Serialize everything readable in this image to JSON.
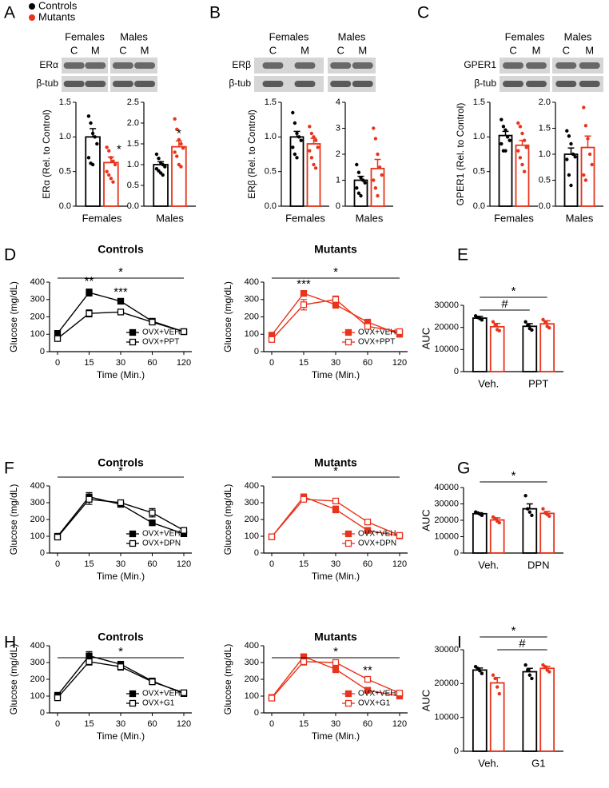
{
  "legend": {
    "items": [
      {
        "name": "Controls",
        "color": "#000000"
      },
      {
        "name": "Mutants",
        "color": "#e8341c"
      }
    ]
  },
  "blots": [
    {
      "panel": "A",
      "groups": [
        "Females",
        "Males"
      ],
      "lanes": [
        "C",
        "M"
      ],
      "rows": [
        "ERα",
        "β-tub"
      ]
    },
    {
      "panel": "B",
      "groups": [
        "Females",
        "Males"
      ],
      "lanes": [
        "C",
        "M"
      ],
      "rows": [
        "ERβ",
        "β-tub"
      ]
    },
    {
      "panel": "C",
      "groups": [
        "Females",
        "Males"
      ],
      "lanes": [
        "C",
        "M"
      ],
      "rows": [
        "GPER1",
        "β-tub"
      ]
    }
  ],
  "chart_data": [
    {
      "type": "bar",
      "ylabel": "ERα (Rel. to Control)",
      "categories": [
        "Females"
      ],
      "ylim": [
        0,
        1.5
      ],
      "yticks": [
        {
          "value": 0,
          "label": "0.0"
        },
        {
          "value": 0.5,
          "label": "0.5"
        },
        {
          "value": 1,
          "label": "1.0"
        },
        {
          "value": 1.5,
          "label": "1.5"
        }
      ],
      "series": [
        {
          "color": "#000000",
          "values": [
            1.0
          ],
          "errors": [
            0.12
          ],
          "points": [
            [
              1.3,
              1.2,
              1.05,
              1.0,
              0.9,
              0.7,
              0.62,
              0.6
            ]
          ]
        },
        {
          "color": "#e8341c",
          "values": [
            0.63
          ],
          "errors": [
            0.08
          ],
          "points": [
            [
              0.85,
              0.8,
              0.7,
              0.65,
              0.6,
              0.5,
              0.45,
              0.4,
              0.35
            ]
          ]
        }
      ],
      "annotations": [
        "*"
      ]
    },
    {
      "type": "bar",
      "categories": [
        "Males"
      ],
      "ylim": [
        0,
        2.5
      ],
      "yticks": [
        {
          "value": 0,
          "label": "0.0"
        },
        {
          "value": 0.5,
          "label": "0.5"
        },
        {
          "value": 1,
          "label": "1.0"
        },
        {
          "value": 1.5,
          "label": "1.5"
        },
        {
          "value": 2,
          "label": "2.0"
        },
        {
          "value": 2.5,
          "label": "2.5"
        }
      ],
      "series": [
        {
          "color": "#000000",
          "values": [
            1.0
          ],
          "errors": [
            0.07
          ],
          "points": [
            [
              1.25,
              1.15,
              1.05,
              1.0,
              0.95,
              0.9,
              0.85,
              0.8,
              0.75
            ]
          ]
        },
        {
          "color": "#e8341c",
          "values": [
            1.43
          ],
          "errors": [
            0.14
          ],
          "points": [
            [
              2.1,
              1.85,
              1.6,
              1.5,
              1.4,
              1.3,
              1.2,
              1.0,
              0.95
            ]
          ]
        }
      ],
      "annotations": [
        "*"
      ]
    },
    {
      "type": "bar",
      "ylabel": "ERβ (Rel. to Control)",
      "categories": [
        "Females"
      ],
      "ylim": [
        0,
        1.5
      ],
      "yticks": [
        {
          "value": 0,
          "label": "0.0"
        },
        {
          "value": 0.5,
          "label": "0.5"
        },
        {
          "value": 1,
          "label": "1.0"
        },
        {
          "value": 1.5,
          "label": "1.5"
        }
      ],
      "series": [
        {
          "color": "#000000",
          "values": [
            1.0
          ],
          "errors": [
            0.08
          ],
          "points": [
            [
              1.35,
              1.2,
              1.05,
              1.0,
              0.95,
              0.85,
              0.75,
              0.7
            ]
          ]
        },
        {
          "color": "#e8341c",
          "values": [
            0.9
          ],
          "errors": [
            0.08
          ],
          "points": [
            [
              1.15,
              1.05,
              1.0,
              0.95,
              0.85,
              0.8,
              0.7,
              0.6,
              0.55
            ]
          ]
        }
      ]
    },
    {
      "type": "bar",
      "categories": [
        "Males"
      ],
      "ylim": [
        0,
        4
      ],
      "yticks": [
        0,
        1,
        2,
        3,
        4
      ],
      "series": [
        {
          "color": "#000000",
          "values": [
            1.0
          ],
          "errors": [
            0.15
          ],
          "points": [
            [
              1.6,
              1.3,
              1.1,
              1.0,
              0.9,
              0.7,
              0.5,
              0.4
            ]
          ]
        },
        {
          "color": "#e8341c",
          "values": [
            1.45
          ],
          "errors": [
            0.35
          ],
          "points": [
            [
              3.0,
              2.6,
              2.0,
              1.5,
              1.2,
              1.0,
              0.7,
              0.4
            ]
          ]
        }
      ]
    },
    {
      "type": "bar",
      "ylabel": "GPER1 (Rel. to Control)",
      "categories": [
        "Females"
      ],
      "ylim": [
        0,
        1.5
      ],
      "yticks": [
        {
          "value": 0,
          "label": "0.0"
        },
        {
          "value": 0.5,
          "label": "0.5"
        },
        {
          "value": 1,
          "label": "1.0"
        },
        {
          "value": 1.5,
          "label": "1.5"
        }
      ],
      "series": [
        {
          "color": "#000000",
          "values": [
            1.02
          ],
          "errors": [
            0.06
          ],
          "points": [
            [
              1.25,
              1.15,
              1.1,
              1.0,
              0.95,
              0.9,
              0.8,
              0.8
            ]
          ]
        },
        {
          "color": "#e8341c",
          "values": [
            0.88
          ],
          "errors": [
            0.07
          ],
          "points": [
            [
              1.2,
              1.15,
              1.05,
              0.95,
              0.85,
              0.8,
              0.7,
              0.6,
              0.5
            ]
          ]
        }
      ]
    },
    {
      "type": "bar",
      "categories": [
        "Males"
      ],
      "ylim": [
        0,
        2
      ],
      "yticks": [
        {
          "value": 0,
          "label": "0.0"
        },
        {
          "value": 0.5,
          "label": "0.5"
        },
        {
          "value": 1,
          "label": "1.0"
        },
        {
          "value": 1.5,
          "label": "1.5"
        },
        {
          "value": 2,
          "label": "2.0"
        }
      ],
      "series": [
        {
          "color": "#000000",
          "values": [
            1.0
          ],
          "errors": [
            0.12
          ],
          "points": [
            [
              1.45,
              1.35,
              1.2,
              1.0,
              0.95,
              0.9,
              0.6,
              0.4
            ]
          ]
        },
        {
          "color": "#e8341c",
          "values": [
            1.13
          ],
          "errors": [
            0.22
          ],
          "points": [
            [
              1.9,
              1.55,
              1.3,
              1.0,
              0.8,
              0.6,
              0.5
            ]
          ]
        }
      ]
    },
    {
      "type": "line",
      "panel": "D",
      "title": "Controls",
      "xlabel": "Time (Min.)",
      "ylabel": "Glucose (mg/dL)",
      "categories": [
        "0",
        "15",
        "30",
        "60",
        "120"
      ],
      "ylim": [
        0,
        400
      ],
      "yticks": [
        0,
        100,
        200,
        300,
        400
      ],
      "series": [
        {
          "name": "OVX+VEH",
          "color": "#000000",
          "marker": "filled",
          "values": [
            105,
            340,
            290,
            175,
            115
          ],
          "errors": [
            6,
            20,
            8,
            8,
            6
          ]
        },
        {
          "name": "OVX+PPT",
          "color": "#000000",
          "marker": "open",
          "values": [
            75,
            220,
            228,
            170,
            115
          ],
          "errors": [
            6,
            20,
            10,
            8,
            6
          ]
        }
      ],
      "annotations": [
        "*",
        "**",
        "***"
      ]
    },
    {
      "type": "line",
      "title": "Mutants",
      "xlabel": "Time (Min.)",
      "ylabel": "Glucose (mg/dL)",
      "categories": [
        "0",
        "15",
        "30",
        "60",
        "120"
      ],
      "ylim": [
        0,
        400
      ],
      "yticks": [
        0,
        100,
        200,
        300,
        400
      ],
      "series": [
        {
          "name": "OVX+VEH",
          "color": "#e8341c",
          "marker": "filled",
          "values": [
            95,
            335,
            270,
            170,
            100
          ],
          "errors": [
            5,
            10,
            20,
            12,
            5
          ]
        },
        {
          "name": "OVX+PPT",
          "color": "#e8341c",
          "marker": "open",
          "values": [
            70,
            270,
            300,
            145,
            115
          ],
          "errors": [
            6,
            30,
            20,
            12,
            6
          ]
        }
      ],
      "annotations": [
        "*",
        "***"
      ]
    },
    {
      "type": "bar",
      "panel": "E",
      "ylabel": "AUC",
      "categories": [
        "Veh.",
        "PPT"
      ],
      "ylim": [
        0,
        30000
      ],
      "yticks": [
        0,
        10000,
        20000,
        30000
      ],
      "series": [
        {
          "color": "#000000",
          "values": [
            24200,
            20500
          ],
          "errors": [
            800,
            1200
          ],
          "points": [
            [
              25200,
              24500,
              24000,
              23400
            ],
            [
              22500,
              21000,
              19500,
              18800
            ]
          ]
        },
        {
          "color": "#e8341c",
          "values": [
            20300,
            21600
          ],
          "errors": [
            1500,
            1400
          ],
          "points": [
            [
              22500,
              21000,
              19000,
              18500
            ],
            [
              23500,
              22500,
              20500,
              19800
            ]
          ]
        }
      ],
      "annotations": [
        "*",
        "#"
      ]
    },
    {
      "type": "line",
      "panel": "F",
      "title": "Controls",
      "xlabel": "Time (Min.)",
      "ylabel": "Glucose (mg/dL)",
      "categories": [
        "0",
        "15",
        "30",
        "60",
        "120"
      ],
      "ylim": [
        0,
        400
      ],
      "yticks": [
        0,
        100,
        200,
        300,
        400
      ],
      "series": [
        {
          "name": "OVX+VEH",
          "color": "#000000",
          "marker": "filled",
          "values": [
            100,
            335,
            290,
            180,
            115
          ],
          "errors": [
            8,
            25,
            10,
            8,
            10
          ]
        },
        {
          "name": "OVX+DPN",
          "color": "#000000",
          "marker": "open",
          "values": [
            95,
            320,
            300,
            240,
            135
          ],
          "errors": [
            10,
            30,
            12,
            25,
            15
          ]
        }
      ],
      "annotations": [
        "*"
      ]
    },
    {
      "type": "line",
      "title": "Mutants",
      "xlabel": "Time (Min.)",
      "ylabel": "Glucose (mg/dL)",
      "categories": [
        "0",
        "15",
        "30",
        "60",
        "120"
      ],
      "ylim": [
        0,
        400
      ],
      "yticks": [
        0,
        100,
        200,
        300,
        400
      ],
      "series": [
        {
          "name": "OVX+VEH",
          "color": "#e8341c",
          "marker": "filled",
          "values": [
            97,
            335,
            260,
            135,
            102
          ],
          "errors": [
            4,
            12,
            20,
            12,
            5
          ]
        },
        {
          "name": "OVX+DPN",
          "color": "#e8341c",
          "marker": "open",
          "values": [
            97,
            320,
            310,
            185,
            105
          ],
          "errors": [
            4,
            15,
            8,
            8,
            5
          ]
        }
      ],
      "annotations": [
        "*"
      ]
    },
    {
      "type": "bar",
      "panel": "G",
      "ylabel": "AUC",
      "categories": [
        "Veh.",
        "DPN"
      ],
      "ylim": [
        0,
        40000
      ],
      "yticks": [
        0,
        10000,
        20000,
        30000,
        40000
      ],
      "series": [
        {
          "color": "#000000",
          "values": [
            24000,
            27000
          ],
          "errors": [
            600,
            3000
          ],
          "points": [
            [
              25000,
              24500,
              23800,
              23000
            ],
            [
              35000,
              27000,
              25000,
              23000
            ]
          ]
        },
        {
          "color": "#e8341c",
          "values": [
            20200,
            24200
          ],
          "errors": [
            1300,
            1200
          ],
          "points": [
            [
              22000,
              21000,
              19500,
              18500
            ],
            [
              27000,
              24500,
              23500,
              22500
            ]
          ]
        }
      ],
      "annotations": [
        "*"
      ]
    },
    {
      "type": "line",
      "panel": "H",
      "title": "Controls",
      "xlabel": "Time (Min.)",
      "ylabel": "Glucose (mg/dL)",
      "categories": [
        "0",
        "15",
        "30",
        "60",
        "120"
      ],
      "ylim": [
        0,
        400
      ],
      "yticks": [
        0,
        100,
        200,
        300,
        400
      ],
      "series": [
        {
          "name": "OVX+VEH",
          "color": "#000000",
          "marker": "filled",
          "values": [
            105,
            340,
            290,
            190,
            115
          ],
          "errors": [
            6,
            25,
            10,
            8,
            8
          ]
        },
        {
          "name": "OVX+G1",
          "color": "#000000",
          "marker": "open",
          "values": [
            90,
            305,
            275,
            185,
            120
          ],
          "errors": [
            6,
            20,
            20,
            8,
            8
          ]
        }
      ],
      "annotations": [
        "*"
      ]
    },
    {
      "type": "line",
      "title": "Mutants",
      "xlabel": "Time (Min.)",
      "ylabel": "Glucose (mg/dL)",
      "categories": [
        "0",
        "15",
        "30",
        "60",
        "120"
      ],
      "ylim": [
        0,
        400
      ],
      "yticks": [
        0,
        100,
        200,
        300,
        400
      ],
      "series": [
        {
          "name": "OVX+VEH",
          "color": "#e8341c",
          "marker": "filled",
          "values": [
            92,
            335,
            260,
            135,
            100
          ],
          "errors": [
            5,
            15,
            20,
            12,
            5
          ]
        },
        {
          "name": "OVX+G1",
          "color": "#e8341c",
          "marker": "open",
          "values": [
            88,
            305,
            300,
            200,
            118
          ],
          "errors": [
            5,
            20,
            15,
            8,
            6
          ]
        }
      ],
      "annotations": [
        "*",
        "**"
      ]
    },
    {
      "type": "bar",
      "panel": "I",
      "ylabel": "AUC",
      "categories": [
        "Veh.",
        "G1"
      ],
      "ylim": [
        0,
        30000
      ],
      "yticks": [
        0,
        10000,
        20000,
        30000
      ],
      "series": [
        {
          "color": "#000000",
          "values": [
            24000,
            23500
          ],
          "errors": [
            600,
            1000
          ],
          "points": [
            [
              25000,
              24500,
              23800,
              23000
            ],
            [
              25500,
              24000,
              22500,
              21500
            ]
          ]
        },
        {
          "color": "#e8341c",
          "values": [
            20200,
            24500
          ],
          "errors": [
            1600,
            600
          ],
          "points": [
            [
              22500,
              21500,
              19000,
              17000
            ],
            [
              25500,
              25000,
              24000,
              23500
            ]
          ]
        }
      ],
      "annotations": [
        "*",
        "#"
      ]
    }
  ]
}
